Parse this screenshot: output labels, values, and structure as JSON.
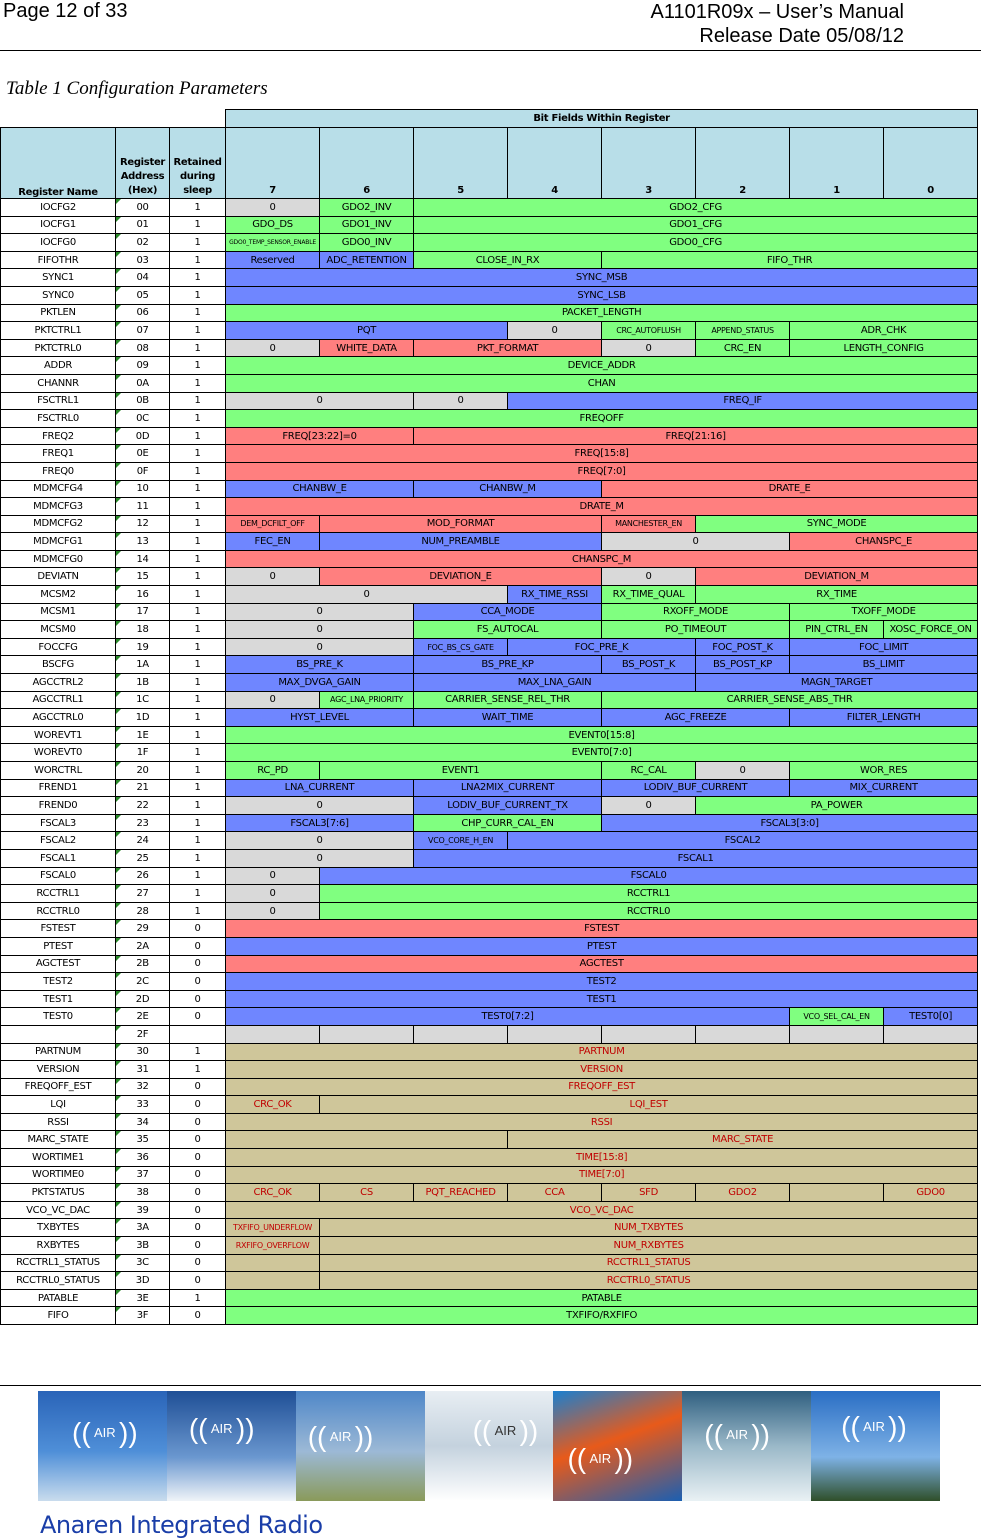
{
  "header": {
    "page": "Page 12 of 33",
    "doc": "A1101R09x – User’s Manual",
    "release": "Release Date 05/08/12"
  },
  "caption": "Table 1 Configuration Parameters",
  "table": {
    "bitfields_title": "Bit Fields Within Register",
    "col_name": "Register Name",
    "col_addr": "Register Address (Hex)",
    "col_ret": "Retained during sleep",
    "bits": [
      "7",
      "6",
      "5",
      "4",
      "3",
      "2",
      "1",
      "0"
    ]
  },
  "rows": [
    [
      "IOCFG2",
      "00",
      "1",
      [
        [
          "0",
          1,
          "z"
        ],
        [
          "GDO2_INV",
          1,
          "g"
        ],
        [
          "GDO2_CFG",
          6,
          "g"
        ]
      ]
    ],
    [
      "IOCFG1",
      "01",
      "1",
      [
        [
          "GDO_DS",
          1,
          "g"
        ],
        [
          "GDO1_INV",
          1,
          "g"
        ],
        [
          "GDO1_CFG",
          6,
          "g"
        ]
      ]
    ],
    [
      "IOCFG0",
      "02",
      "1",
      [
        [
          "GDO0_TEMP_SENSOR_ENABLE",
          1,
          "g tiny"
        ],
        [
          "GDO0_INV",
          1,
          "g"
        ],
        [
          "GDO0_CFG",
          6,
          "g"
        ]
      ]
    ],
    [
      "FIFOTHR",
      "03",
      "1",
      [
        [
          "Reserved",
          1,
          "b"
        ],
        [
          "ADC_RETENTION",
          1,
          "b"
        ],
        [
          "CLOSE_IN_RX",
          2,
          "g"
        ],
        [
          "FIFO_THR",
          4,
          "g"
        ]
      ]
    ],
    [
      "SYNC1",
      "04",
      "1",
      [
        [
          "SYNC_MSB",
          8,
          "b"
        ]
      ]
    ],
    [
      "SYNC0",
      "05",
      "1",
      [
        [
          "SYNC_LSB",
          8,
          "b"
        ]
      ]
    ],
    [
      "PKTLEN",
      "06",
      "1",
      [
        [
          "PACKET_LENGTH",
          8,
          "g"
        ]
      ]
    ],
    [
      "PKTCTRL1",
      "07",
      "1",
      [
        [
          "PQT",
          3,
          "b"
        ],
        [
          "0",
          1,
          "z"
        ],
        [
          "CRC_AUTOFLUSH",
          1,
          "g small"
        ],
        [
          "APPEND_STATUS",
          1,
          "g small"
        ],
        [
          "ADR_CHK",
          2,
          "g"
        ]
      ]
    ],
    [
      "PKTCTRL0",
      "08",
      "1",
      [
        [
          "0",
          1,
          "z"
        ],
        [
          "WHITE_DATA",
          1,
          "r"
        ],
        [
          "PKT_FORMAT",
          2,
          "r"
        ],
        [
          "0",
          1,
          "z"
        ],
        [
          "CRC_EN",
          1,
          "g"
        ],
        [
          "LENGTH_CONFIG",
          2,
          "g"
        ]
      ]
    ],
    [
      "ADDR",
      "09",
      "1",
      [
        [
          "DEVICE_ADDR",
          8,
          "g"
        ]
      ]
    ],
    [
      "CHANNR",
      "0A",
      "1",
      [
        [
          "CHAN",
          8,
          "g"
        ]
      ]
    ],
    [
      "FSCTRL1",
      "0B",
      "1",
      [
        [
          "0",
          2,
          "z"
        ],
        [
          "0",
          1,
          "z"
        ],
        [
          "FREQ_IF",
          5,
          "b"
        ]
      ]
    ],
    [
      "FSCTRL0",
      "0C",
      "1",
      [
        [
          "FREQOFF",
          8,
          "g"
        ]
      ]
    ],
    [
      "FREQ2",
      "0D",
      "1",
      [
        [
          "FREQ[23:22]=0",
          2,
          "r"
        ],
        [
          "FREQ[21:16]",
          6,
          "r"
        ]
      ]
    ],
    [
      "FREQ1",
      "0E",
      "1",
      [
        [
          "FREQ[15:8]",
          8,
          "r"
        ]
      ]
    ],
    [
      "FREQ0",
      "0F",
      "1",
      [
        [
          "FREQ[7:0]",
          8,
          "r"
        ]
      ]
    ],
    [
      "MDMCFG4",
      "10",
      "1",
      [
        [
          "CHANBW_E",
          2,
          "b"
        ],
        [
          "CHANBW_M",
          2,
          "b"
        ],
        [
          "DRATE_E",
          4,
          "r"
        ]
      ]
    ],
    [
      "MDMCFG3",
      "11",
      "1",
      [
        [
          "DRATE_M",
          8,
          "r"
        ]
      ]
    ],
    [
      "MDMCFG2",
      "12",
      "1",
      [
        [
          "DEM_DCFILT_OFF",
          1,
          "r small"
        ],
        [
          "MOD_FORMAT",
          3,
          "r"
        ],
        [
          "MANCHESTER_EN",
          1,
          "r small"
        ],
        [
          "SYNC_MODE",
          3,
          "g"
        ]
      ]
    ],
    [
      "MDMCFG1",
      "13",
      "1",
      [
        [
          "FEC_EN",
          1,
          "b"
        ],
        [
          "NUM_PREAMBLE",
          3,
          "b"
        ],
        [
          "0",
          2,
          "z"
        ],
        [
          "CHANSPC_E",
          2,
          "r"
        ]
      ]
    ],
    [
      "MDMCFG0",
      "14",
      "1",
      [
        [
          "CHANSPC_M",
          8,
          "r"
        ]
      ]
    ],
    [
      "DEVIATN",
      "15",
      "1",
      [
        [
          "0",
          1,
          "z"
        ],
        [
          "DEVIATION_E",
          3,
          "r"
        ],
        [
          "0",
          1,
          "z"
        ],
        [
          "DEVIATION_M",
          3,
          "r"
        ]
      ]
    ],
    [
      "MCSM2",
      "16",
      "1",
      [
        [
          "0",
          3,
          "z"
        ],
        [
          "RX_TIME_RSSI",
          1,
          "b"
        ],
        [
          "RX_TIME_QUAL",
          1,
          "g"
        ],
        [
          "RX_TIME",
          3,
          "g"
        ]
      ]
    ],
    [
      "MCSM1",
      "17",
      "1",
      [
        [
          "0",
          2,
          "z"
        ],
        [
          "CCA_MODE",
          2,
          "b"
        ],
        [
          "RXOFF_MODE",
          2,
          "g"
        ],
        [
          "TXOFF_MODE",
          2,
          "g"
        ]
      ]
    ],
    [
      "MCSM0",
      "18",
      "1",
      [
        [
          "0",
          2,
          "z"
        ],
        [
          "FS_AUTOCAL",
          2,
          "g"
        ],
        [
          "PO_TIMEOUT",
          2,
          "g"
        ],
        [
          "PIN_CTRL_EN",
          1,
          "g"
        ],
        [
          "XOSC_FORCE_ON",
          1,
          "g"
        ]
      ]
    ],
    [
      "FOCCFG",
      "19",
      "1",
      [
        [
          "0",
          2,
          "z"
        ],
        [
          "FOC_BS_CS_GATE",
          1,
          "b small"
        ],
        [
          "FOC_PRE_K",
          2,
          "b"
        ],
        [
          "FOC_POST_K",
          1,
          "b"
        ],
        [
          "FOC_LIMIT",
          2,
          "b"
        ]
      ]
    ],
    [
      "BSCFG",
      "1A",
      "1",
      [
        [
          "BS_PRE_K",
          2,
          "b"
        ],
        [
          "BS_PRE_KP",
          2,
          "b"
        ],
        [
          "BS_POST_K",
          1,
          "b"
        ],
        [
          "BS_POST_KP",
          1,
          "b"
        ],
        [
          "BS_LIMIT",
          2,
          "b"
        ]
      ]
    ],
    [
      "AGCCTRL2",
      "1B",
      "1",
      [
        [
          "MAX_DVGA_GAIN",
          2,
          "b"
        ],
        [
          "MAX_LNA_GAIN",
          3,
          "b"
        ],
        [
          "MAGN_TARGET",
          3,
          "b"
        ]
      ]
    ],
    [
      "AGCCTRL1",
      "1C",
      "1",
      [
        [
          "0",
          1,
          "z"
        ],
        [
          "AGC_LNA_PRIORITY",
          1,
          "g small"
        ],
        [
          "CARRIER_SENSE_REL_THR",
          2,
          "g"
        ],
        [
          "CARRIER_SENSE_ABS_THR",
          4,
          "g"
        ]
      ]
    ],
    [
      "AGCCTRL0",
      "1D",
      "1",
      [
        [
          "HYST_LEVEL",
          2,
          "b"
        ],
        [
          "WAIT_TIME",
          2,
          "b"
        ],
        [
          "AGC_FREEZE",
          2,
          "b"
        ],
        [
          "FILTER_LENGTH",
          2,
          "b"
        ]
      ]
    ],
    [
      "WOREVT1",
      "1E",
      "1",
      [
        [
          "EVENT0[15:8]",
          8,
          "g"
        ]
      ]
    ],
    [
      "WOREVT0",
      "1F",
      "1",
      [
        [
          "EVENT0[7:0]",
          8,
          "g"
        ]
      ]
    ],
    [
      "WORCTRL",
      "20",
      "1",
      [
        [
          "RC_PD",
          1,
          "g"
        ],
        [
          "EVENT1",
          3,
          "g"
        ],
        [
          "RC_CAL",
          1,
          "g"
        ],
        [
          "0",
          1,
          "z"
        ],
        [
          "WOR_RES",
          2,
          "g"
        ]
      ]
    ],
    [
      "FREND1",
      "21",
      "1",
      [
        [
          "LNA_CURRENT",
          2,
          "b"
        ],
        [
          "LNA2MIX_CURRENT",
          2,
          "b"
        ],
        [
          "LODIV_BUF_CURRENT",
          2,
          "b"
        ],
        [
          "MIX_CURRENT",
          2,
          "b"
        ]
      ]
    ],
    [
      "FREND0",
      "22",
      "1",
      [
        [
          "0",
          2,
          "z"
        ],
        [
          "LODIV_BUF_CURRENT_TX",
          2,
          "b"
        ],
        [
          "0",
          1,
          "z"
        ],
        [
          "PA_POWER",
          3,
          "g"
        ]
      ]
    ],
    [
      "FSCAL3",
      "23",
      "1",
      [
        [
          "FSCAL3[7:6]",
          2,
          "b"
        ],
        [
          "CHP_CURR_CAL_EN",
          2,
          "g"
        ],
        [
          "FSCAL3[3:0]",
          4,
          "b"
        ]
      ]
    ],
    [
      "FSCAL2",
      "24",
      "1",
      [
        [
          "0",
          2,
          "z"
        ],
        [
          "VCO_CORE_H_EN",
          1,
          "b small"
        ],
        [
          "FSCAL2",
          5,
          "b"
        ]
      ]
    ],
    [
      "FSCAL1",
      "25",
      "1",
      [
        [
          "0",
          2,
          "z"
        ],
        [
          "FSCAL1",
          6,
          "b"
        ]
      ]
    ],
    [
      "FSCAL0",
      "26",
      "1",
      [
        [
          "0",
          1,
          "z"
        ],
        [
          "FSCAL0",
          7,
          "b"
        ]
      ]
    ],
    [
      "RCCTRL1",
      "27",
      "1",
      [
        [
          "0",
          1,
          "z"
        ],
        [
          "RCCTRL1",
          7,
          "g"
        ]
      ]
    ],
    [
      "RCCTRL0",
      "28",
      "1",
      [
        [
          "0",
          1,
          "z"
        ],
        [
          "RCCTRL0",
          7,
          "g"
        ]
      ]
    ],
    [
      "FSTEST",
      "29",
      "0",
      [
        [
          "FSTEST",
          8,
          "r"
        ]
      ]
    ],
    [
      "PTEST",
      "2A",
      "0",
      [
        [
          "PTEST",
          8,
          "b"
        ]
      ]
    ],
    [
      "AGCTEST",
      "2B",
      "0",
      [
        [
          "AGCTEST",
          8,
          "r"
        ]
      ]
    ],
    [
      "TEST2",
      "2C",
      "0",
      [
        [
          "TEST2",
          8,
          "b"
        ]
      ]
    ],
    [
      "TEST1",
      "2D",
      "0",
      [
        [
          "TEST1",
          8,
          "b"
        ]
      ]
    ],
    [
      "TEST0",
      "2E",
      "0",
      [
        [
          "TEST0[7:2]",
          6,
          "b"
        ],
        [
          "VCO_SEL_CAL_EN",
          1,
          "g small"
        ],
        [
          "TEST0[0]",
          1,
          "b"
        ]
      ]
    ],
    [
      "",
      "2F",
      "",
      [
        [
          "",
          1,
          "e"
        ],
        [
          "",
          1,
          "e"
        ],
        [
          "",
          1,
          "e"
        ],
        [
          "",
          1,
          "e"
        ],
        [
          "",
          1,
          "e"
        ],
        [
          "",
          1,
          "e"
        ],
        [
          "",
          1,
          "e"
        ],
        [
          "",
          1,
          "e"
        ]
      ]
    ],
    [
      "PARTNUM",
      "30",
      "1",
      [
        [
          "PARTNUM",
          8,
          "t"
        ]
      ]
    ],
    [
      "VERSION",
      "31",
      "1",
      [
        [
          "VERSION",
          8,
          "t"
        ]
      ]
    ],
    [
      "FREQOFF_EST",
      "32",
      "0",
      [
        [
          "FREQOFF_EST",
          8,
          "t"
        ]
      ]
    ],
    [
      "LQI",
      "33",
      "0",
      [
        [
          "CRC_OK",
          1,
          "t"
        ],
        [
          "LQI_EST",
          7,
          "t"
        ]
      ]
    ],
    [
      "RSSI",
      "34",
      "0",
      [
        [
          "RSSI",
          8,
          "t"
        ]
      ]
    ],
    [
      "MARC_STATE",
      "35",
      "0",
      [
        [
          "",
          3,
          "t"
        ],
        [
          "MARC_STATE",
          5,
          "t"
        ]
      ]
    ],
    [
      "WORTIME1",
      "36",
      "0",
      [
        [
          "TIME[15:8]",
          8,
          "t"
        ]
      ]
    ],
    [
      "WORTIME0",
      "37",
      "0",
      [
        [
          "TIME[7:0]",
          8,
          "t"
        ]
      ]
    ],
    [
      "PKTSTATUS",
      "38",
      "0",
      [
        [
          "CRC_OK",
          1,
          "t"
        ],
        [
          "CS",
          1,
          "t"
        ],
        [
          "PQT_REACHED",
          1,
          "t"
        ],
        [
          "CCA",
          1,
          "t"
        ],
        [
          "SFD",
          1,
          "t"
        ],
        [
          "GDO2",
          1,
          "t"
        ],
        [
          "",
          1,
          "t"
        ],
        [
          "GDO0",
          1,
          "t"
        ]
      ]
    ],
    [
      "VCO_VC_DAC",
      "39",
      "0",
      [
        [
          "VCO_VC_DAC",
          8,
          "t"
        ]
      ]
    ],
    [
      "TXBYTES",
      "3A",
      "0",
      [
        [
          "TXFIFO_UNDERFLOW",
          1,
          "t small"
        ],
        [
          "NUM_TXBYTES",
          7,
          "t"
        ]
      ]
    ],
    [
      "RXBYTES",
      "3B",
      "0",
      [
        [
          "RXFIFO_OVERFLOW",
          1,
          "t small"
        ],
        [
          "NUM_RXBYTES",
          7,
          "t"
        ]
      ]
    ],
    [
      "RCCTRL1_STATUS",
      "3C",
      "0",
      [
        [
          "",
          1,
          "t"
        ],
        [
          "RCCTRL1_STATUS",
          7,
          "t"
        ]
      ]
    ],
    [
      "RCCTRL0_STATUS",
      "3D",
      "0",
      [
        [
          "",
          1,
          "t"
        ],
        [
          "RCCTRL0_STATUS",
          7,
          "t"
        ]
      ]
    ],
    [
      "PATABLE",
      "3E",
      "1",
      [
        [
          "PATABLE",
          8,
          "g"
        ]
      ]
    ],
    [
      "FIFO",
      "3F",
      "0",
      [
        [
          "TXFIFO/RXFIFO",
          8,
          "g"
        ]
      ]
    ]
  ],
  "colors": {
    "green": "#80ff80",
    "blue": "#6f86ff",
    "red": "#ff7f7f",
    "grey": "#d9d9d9",
    "status": "#cfc69a"
  },
  "footer": {
    "badges": [
      "AIR",
      "AIR",
      "AIR",
      "AIR",
      "AIR",
      "AIR",
      "AIR"
    ],
    "brand": "Anaren Integrated Radio"
  }
}
